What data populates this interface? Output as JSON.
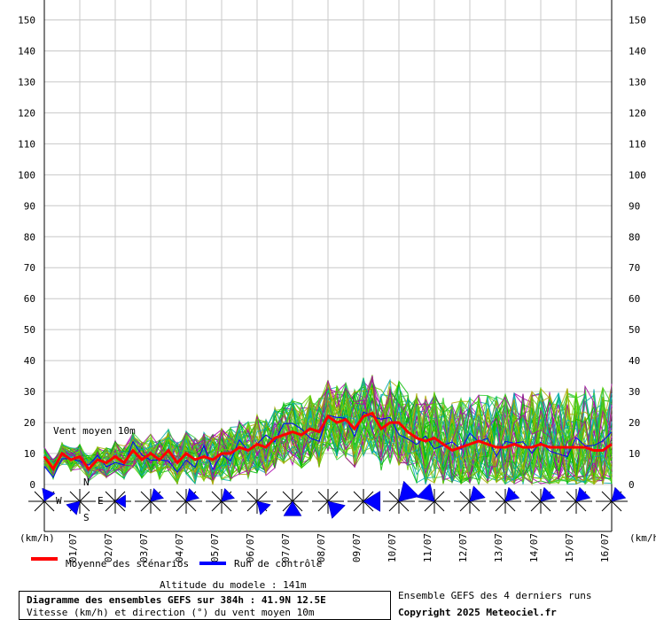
{
  "chart_data": {
    "type": "line",
    "title": "Diagramme des ensembles GEFS sur 384h : 41.9N 12.5E",
    "subtitle": "Vitesse (km/h) et direction (°) du vent moyen 10m",
    "annotation": "Vent moyen 10m",
    "ylabel_left": "(km/h)",
    "ylabel_right": "(km/h)",
    "ylim": [
      0,
      155
    ],
    "yticks": [
      0,
      10,
      20,
      30,
      40,
      50,
      60,
      70,
      80,
      90,
      100,
      110,
      120,
      130,
      140,
      150
    ],
    "grid": true,
    "x_dates": [
      "01/07",
      "02/07",
      "03/07",
      "04/07",
      "05/07",
      "06/07",
      "07/07",
      "08/07",
      "09/07",
      "10/07",
      "11/07",
      "12/07",
      "13/07",
      "14/07",
      "15/07",
      "16/07"
    ],
    "series": [
      {
        "name": "Moyenne des scénarios",
        "color": "#ff0000",
        "x": [
          0,
          0.25,
          0.5,
          0.75,
          1,
          1.25,
          1.5,
          1.75,
          2,
          2.25,
          2.5,
          2.75,
          3,
          3.25,
          3.5,
          3.75,
          4,
          4.25,
          4.5,
          4.75,
          5,
          5.25,
          5.5,
          5.75,
          6,
          6.25,
          6.5,
          6.75,
          7,
          7.25,
          7.5,
          7.75,
          8,
          8.25,
          8.5,
          8.75,
          9,
          9.25,
          9.5,
          9.75,
          10,
          10.25,
          10.5,
          10.75,
          11,
          11.25,
          11.5,
          11.75,
          12,
          12.25,
          12.5,
          12.75,
          13,
          13.25,
          13.5,
          13.75,
          14,
          14.25,
          14.5,
          14.75,
          15,
          15.25,
          15.5,
          15.75,
          16
        ],
        "values": [
          9,
          5,
          10,
          8,
          9,
          5,
          8,
          7,
          9,
          7,
          11,
          8,
          10,
          8,
          11,
          7,
          10,
          8,
          9,
          8,
          10,
          10,
          12,
          11,
          13,
          12,
          15,
          16,
          17,
          16,
          18,
          17,
          22,
          20,
          21,
          18,
          22,
          23,
          18,
          20,
          20,
          17,
          15,
          14,
          15,
          13,
          11,
          12,
          13,
          14,
          13,
          12,
          12,
          13,
          12,
          12,
          13,
          12,
          12,
          12,
          12,
          12,
          11,
          11,
          13
        ]
      },
      {
        "name": "Run de contrôle",
        "color": "#0000ff"
      }
    ],
    "ensemble_colors": [
      "#00bb00",
      "#33cc33",
      "#aaaa00",
      "#aa00aa",
      "#00aaaa",
      "#66cc00"
    ],
    "wind_roses": [
      {
        "dir": "NNE",
        "speed": 10
      },
      {
        "dir": "SW",
        "speed": 11
      },
      {
        "dir": "E",
        "speed": 8
      },
      {
        "dir": "NE",
        "speed": 10
      },
      {
        "dir": "NE",
        "speed": 10
      },
      {
        "dir": "NE",
        "speed": 10
      },
      {
        "dir": "SE",
        "speed": 11
      },
      {
        "dir": "S",
        "speed": 16
      },
      {
        "dir": "SE",
        "speed": 17
      },
      {
        "dir": "E",
        "speed": 20
      },
      {
        "dir": "NE",
        "speed": 22
      },
      {
        "dir": "NW",
        "speed": 18
      },
      {
        "dir": "NE",
        "speed": 14
      },
      {
        "dir": "NE",
        "speed": 12
      },
      {
        "dir": "NE",
        "speed": 12
      },
      {
        "dir": "NE",
        "speed": 12
      },
      {
        "dir": "NE",
        "speed": 12
      }
    ],
    "compass": {
      "n": "N",
      "s": "S",
      "e": "E",
      "w": "W"
    }
  },
  "legend": {
    "mean_label": "Moyenne des scénarios",
    "control_label": "Run de contrôle",
    "mean_color": "#ff0000",
    "control_color": "#0000ff"
  },
  "footer": {
    "altitude": "Altitude du modele : 141m",
    "title": "Diagramme des ensembles GEFS sur 384h : 41.9N 12.5E",
    "subtitle": "Vitesse (km/h) et direction (°) du vent moyen 10m",
    "ensemble_note": "Ensemble GEFS des 4 derniers runs",
    "copyright": "Copyright 2025 Meteociel.fr"
  }
}
